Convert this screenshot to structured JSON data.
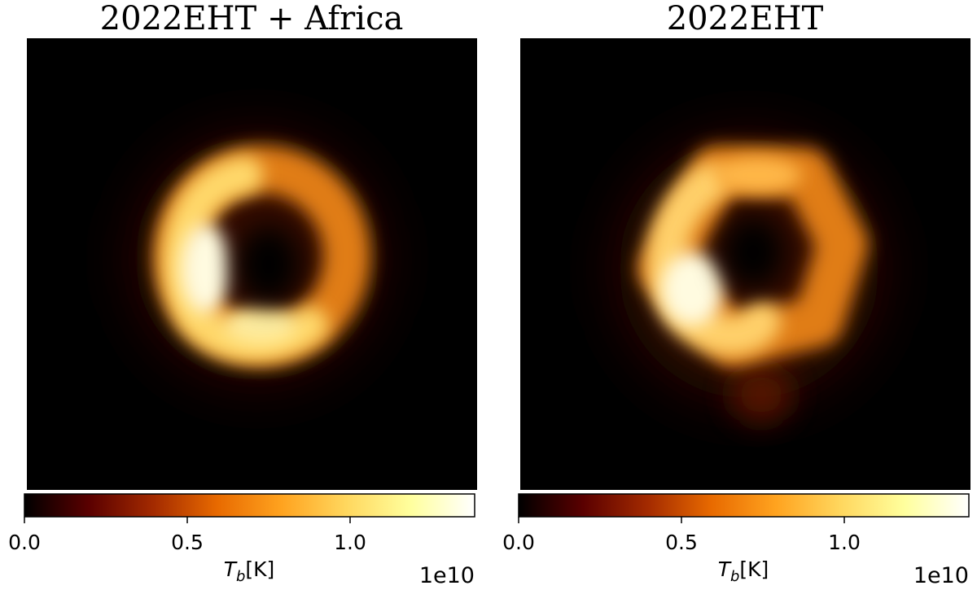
{
  "chart_data": [
    {
      "type": "heatmap",
      "title": "2022EHT + Africa",
      "colormap": "afmhot",
      "colorbar": {
        "label_symbol": "T",
        "label_subscript": "b",
        "label_unit": "[K]",
        "range": [
          0,
          1.38
        ],
        "ticks": [
          0.0,
          0.5,
          1.0
        ],
        "tick_labels": [
          "0.0",
          "0.5",
          "1.0"
        ],
        "offset_text": "1e10",
        "orientation": "horizontal"
      },
      "image": {
        "description": "ring",
        "peak_value": 1.38,
        "brightest_side": "left",
        "features": [
          "bright ring with dark central depression",
          "diffuse halo",
          "brightness asymmetry toward left"
        ]
      },
      "axes_visible": false
    },
    {
      "type": "heatmap",
      "title": "2022EHT",
      "colormap": "afmhot",
      "colorbar": {
        "label_symbol": "T",
        "label_subscript": "b",
        "label_unit": "[K]",
        "range": [
          0,
          1.38
        ],
        "ticks": [
          0.0,
          0.5,
          1.0
        ],
        "tick_labels": [
          "0.0",
          "0.5",
          "1.0"
        ],
        "offset_text": "1e10",
        "orientation": "horizontal"
      },
      "image": {
        "description": "ring",
        "peak_value": 1.38,
        "brightest_side": "lower-left",
        "features": [
          "hexagonal-looking ring",
          "dark central depression",
          "faint lobe toward bottom",
          "brightness asymmetry toward lower left"
        ]
      },
      "axes_visible": false
    }
  ],
  "colors": {
    "colormap_stops": [
      "#000000",
      "#5a0000",
      "#a32a00",
      "#e86a00",
      "#ffa31f",
      "#ffd75e",
      "#ffff9d",
      "#ffffff"
    ]
  }
}
